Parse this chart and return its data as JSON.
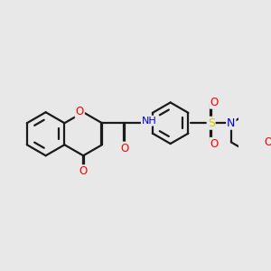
{
  "background_color": "#e8e8e8",
  "bond_color": "#1a1a1a",
  "atom_colors": {
    "O": "#ff0000",
    "N": "#0000cd",
    "S": "#cccc00",
    "H": "#4a9090",
    "C": "#1a1a1a"
  },
  "figsize": [
    3.0,
    3.0
  ],
  "dpi": 100
}
